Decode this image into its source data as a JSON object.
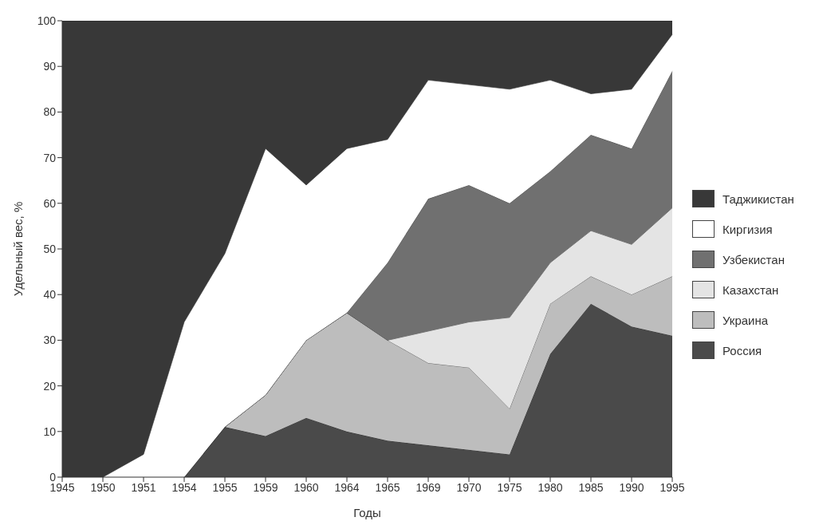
{
  "chart_data": {
    "type": "area",
    "stacked": true,
    "xlabel": "Годы",
    "ylabel": "Удельный вес, %",
    "categories": [
      "1945",
      "1950",
      "1951",
      "1954",
      "1955",
      "1959",
      "1960",
      "1964",
      "1965",
      "1969",
      "1970",
      "1975",
      "1980",
      "1985",
      "1990",
      "1995"
    ],
    "ylim": [
      0,
      100
    ],
    "yticks": [
      0,
      10,
      20,
      30,
      40,
      50,
      60,
      70,
      80,
      90,
      100
    ],
    "grid": false,
    "legend": "right",
    "series": [
      {
        "name": "Россия",
        "color": "#4a4a4a",
        "values": [
          0,
          0,
          0,
          0,
          11,
          9,
          13,
          10,
          8,
          7,
          6,
          5,
          27,
          38,
          33,
          31
        ]
      },
      {
        "name": "Украина",
        "color": "#bdbdbd",
        "values": [
          0,
          0,
          0,
          0,
          0,
          9,
          17,
          26,
          22,
          18,
          18,
          10,
          11,
          6,
          7,
          13
        ]
      },
      {
        "name": "Казахстан",
        "color": "#e4e4e4",
        "values": [
          0,
          0,
          0,
          0,
          0,
          0,
          0,
          0,
          0,
          7,
          10,
          20,
          9,
          10,
          11,
          15
        ]
      },
      {
        "name": "Узбекистан",
        "color": "#707070",
        "values": [
          0,
          0,
          0,
          0,
          0,
          0,
          0,
          0,
          17,
          29,
          30,
          25,
          20,
          21,
          21,
          30
        ]
      },
      {
        "name": "Киргизия",
        "color": "#ffffff",
        "values": [
          0,
          0,
          5,
          34,
          38,
          54,
          34,
          36,
          27,
          26,
          22,
          25,
          20,
          9,
          13,
          8
        ]
      },
      {
        "name": "Таджикистан",
        "color": "#383838",
        "values": [
          100,
          100,
          95,
          66,
          51,
          28,
          36,
          28,
          26,
          13,
          14,
          15,
          13,
          16,
          15,
          3
        ]
      }
    ]
  }
}
